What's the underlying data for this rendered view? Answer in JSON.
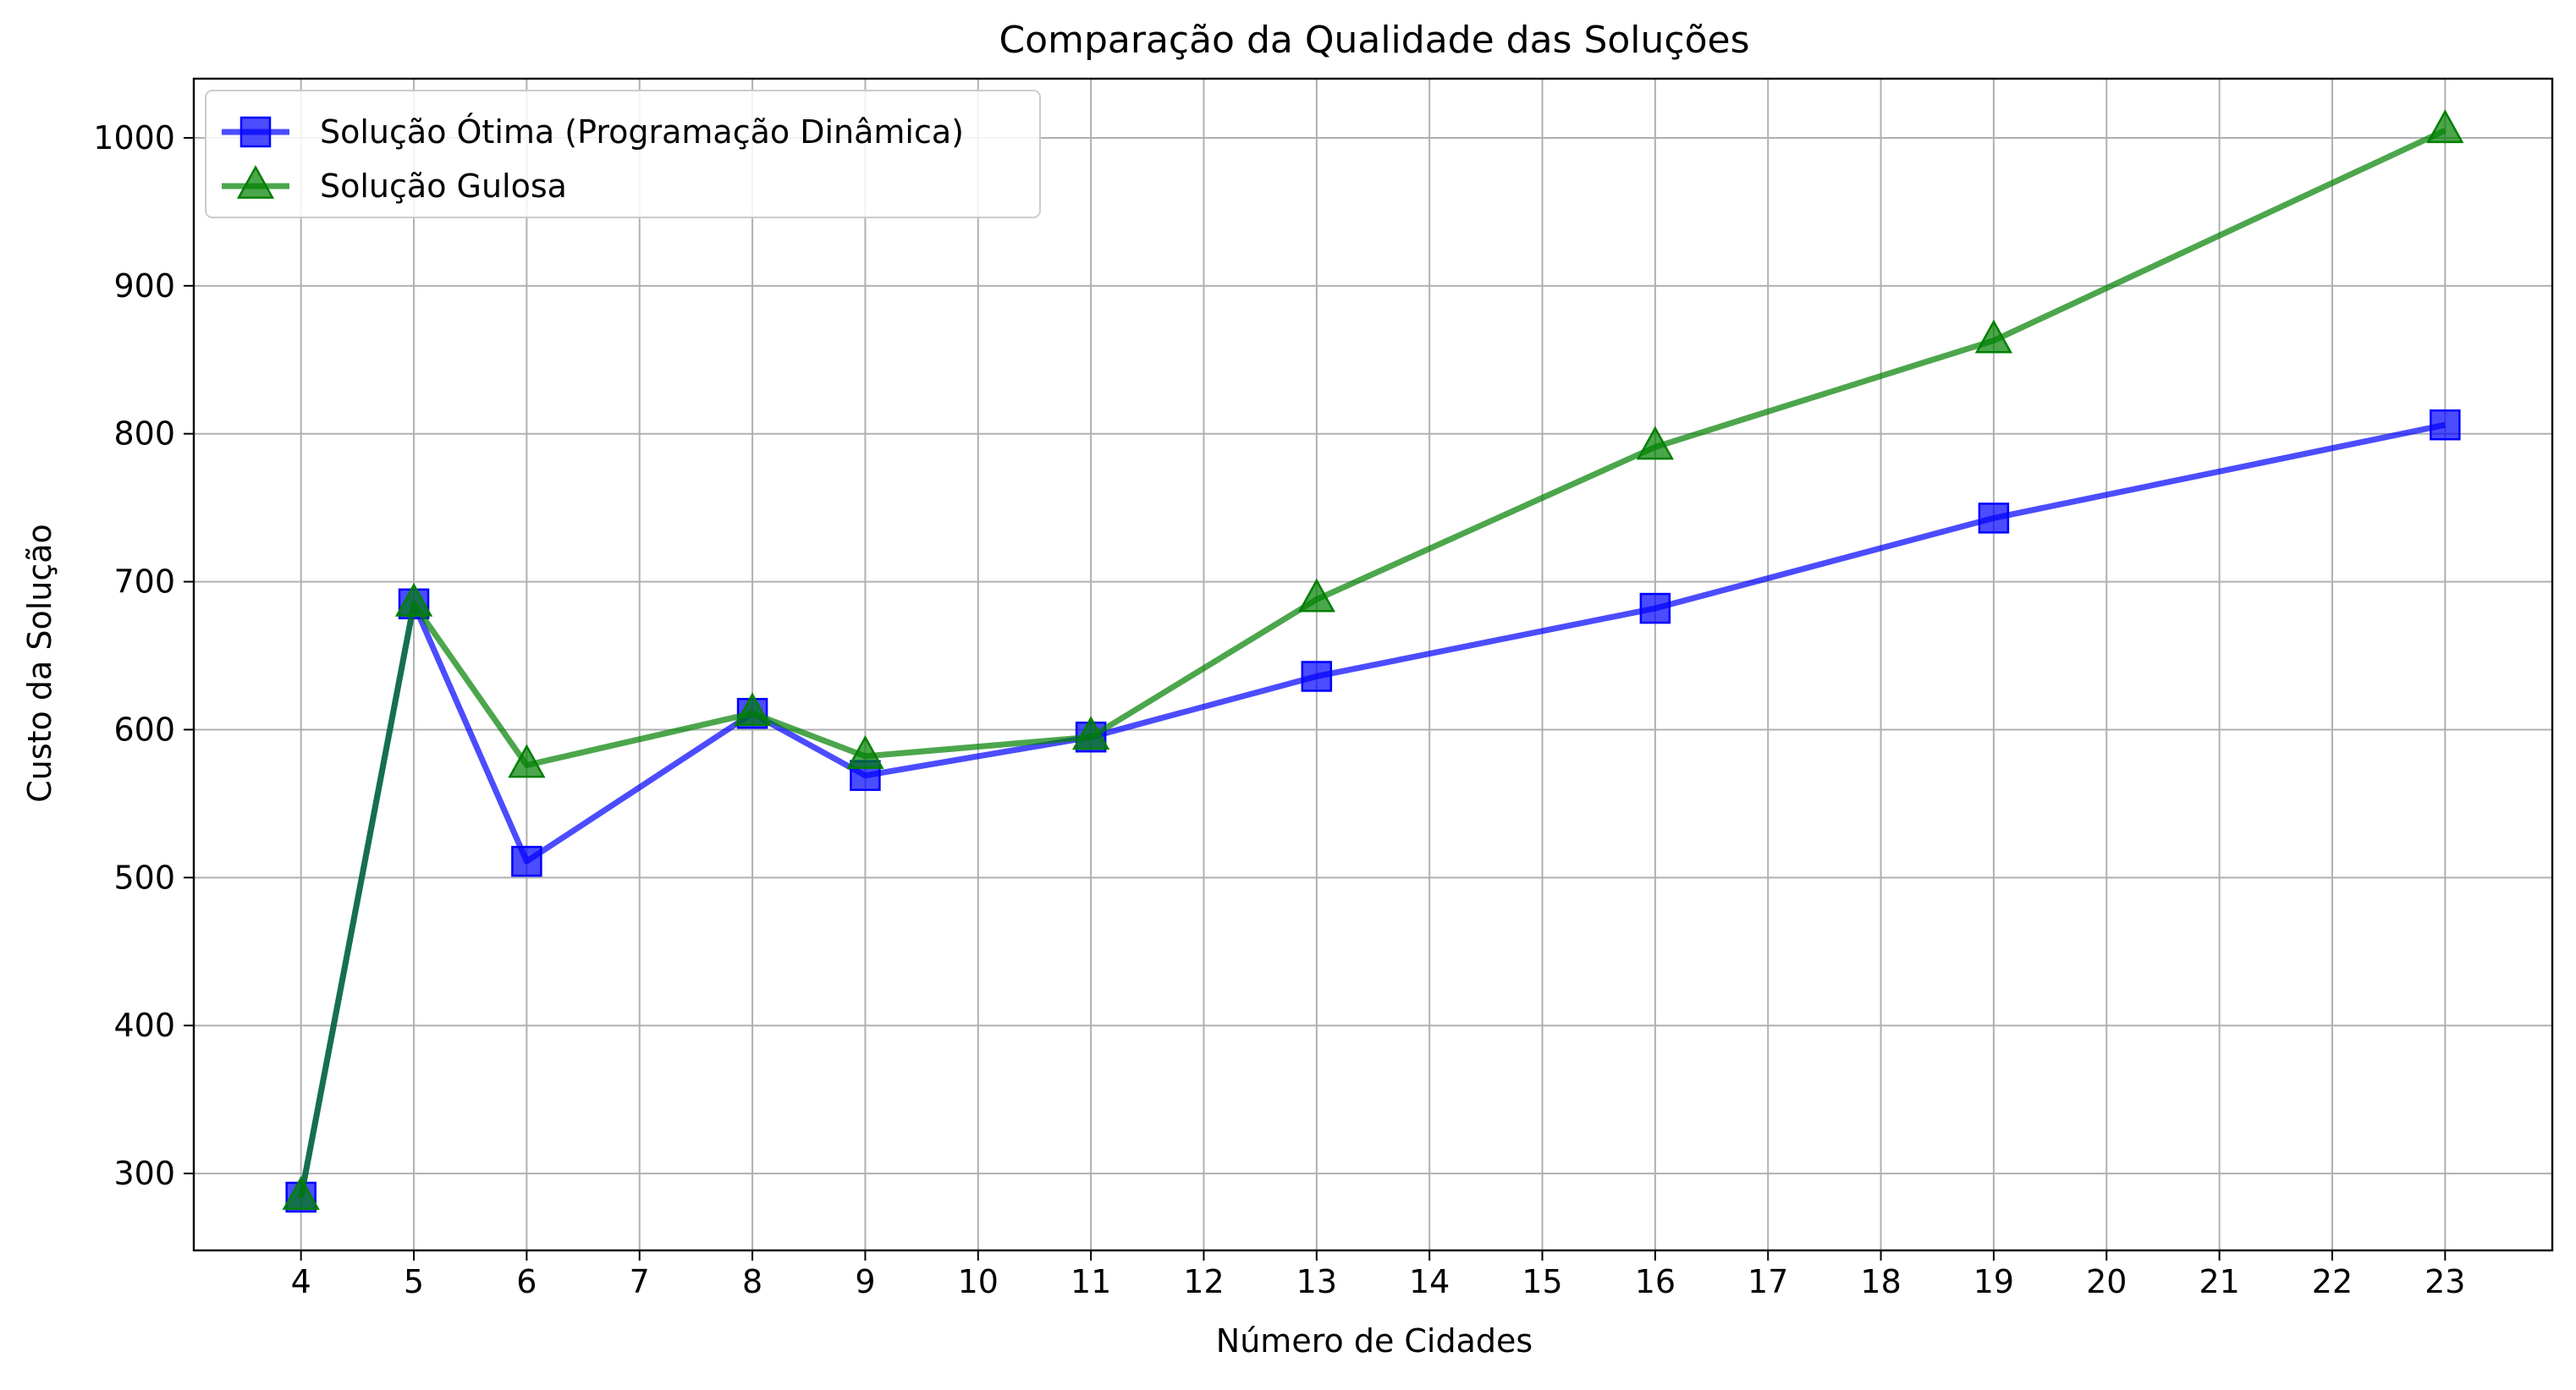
{
  "chart_data": {
    "type": "line",
    "title": "Comparação da Qualidade das Soluções",
    "xlabel": "Número de Cidades",
    "ylabel": "Custo da Solução",
    "xlim": [
      3.05,
      23.95
    ],
    "ylim": [
      248,
      1040
    ],
    "x_ticks": [
      4,
      5,
      6,
      7,
      8,
      9,
      10,
      11,
      12,
      13,
      14,
      15,
      16,
      17,
      18,
      19,
      20,
      21,
      22,
      23
    ],
    "y_ticks": [
      300,
      400,
      500,
      600,
      700,
      800,
      900,
      1000
    ],
    "grid": true,
    "legend_position": "top-left",
    "series": [
      {
        "name": "Solução Ótima (Programação Dinâmica)",
        "color": "#0000ff",
        "marker": "square",
        "x": [
          4,
          5,
          6,
          8,
          9,
          11,
          13,
          16,
          19,
          23
        ],
        "y": [
          284,
          685,
          511,
          611,
          569,
          595,
          636,
          682,
          743,
          806
        ]
      },
      {
        "name": "Solução Gulosa",
        "color": "#008000",
        "marker": "triangle",
        "x": [
          4,
          5,
          6,
          8,
          9,
          11,
          13,
          16,
          19,
          23
        ],
        "y": [
          284,
          685,
          576,
          611,
          582,
          595,
          688,
          791,
          863,
          1005
        ]
      }
    ]
  }
}
